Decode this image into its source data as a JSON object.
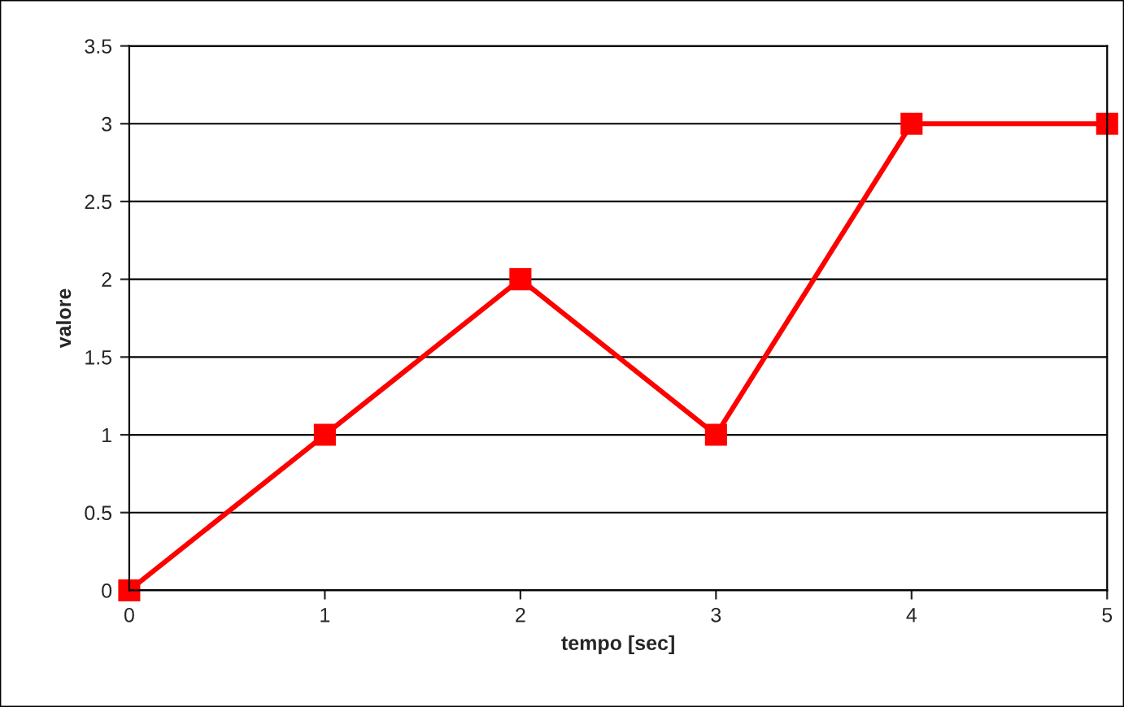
{
  "chart_data": {
    "type": "line",
    "xlabel": "tempo [sec]",
    "ylabel": "valore",
    "x": [
      0,
      1,
      2,
      3,
      4,
      5
    ],
    "series": [
      {
        "color": "#ff0000",
        "values": [
          0,
          1,
          2,
          1,
          3,
          3
        ]
      }
    ],
    "xlim": [
      0,
      5
    ],
    "xticks": [
      0,
      1,
      2,
      3,
      4,
      5
    ],
    "ylim": [
      0,
      3.5
    ],
    "yticks": [
      0,
      0.5,
      1,
      1.5,
      2,
      2.5,
      3,
      3.5
    ],
    "grid": "y",
    "marker": "square",
    "line_style": "solid"
  }
}
